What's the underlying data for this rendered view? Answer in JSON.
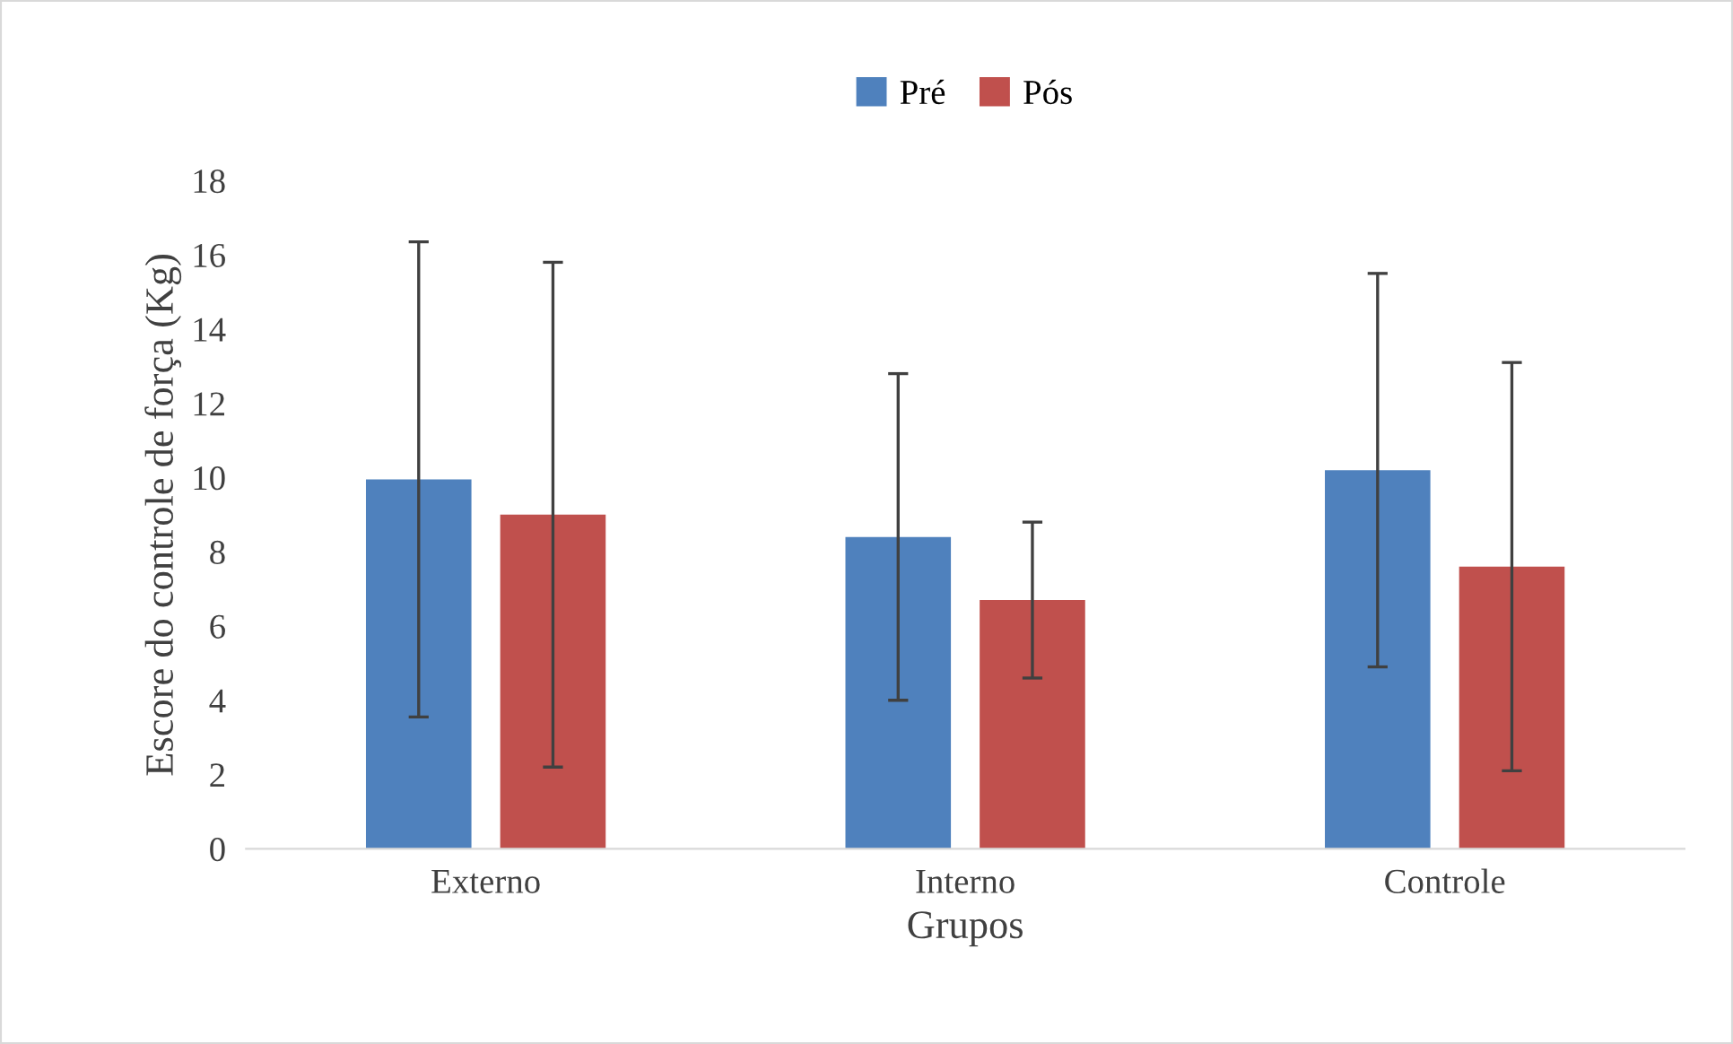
{
  "chart_data": {
    "type": "bar",
    "xlabel": "Grupos",
    "ylabel": "Escore do controle de força (Kg)",
    "categories": [
      "Externo",
      "Interno",
      "Controle"
    ],
    "series": [
      {
        "name": "Pré",
        "color": "#4f81bd",
        "values": [
          9.95,
          8.4,
          10.2
        ],
        "errors": [
          6.4,
          4.4,
          5.3
        ]
      },
      {
        "name": "Pós",
        "color": "#c0504d",
        "values": [
          9.0,
          6.7,
          7.6
        ],
        "errors": [
          6.8,
          2.1,
          5.5
        ]
      }
    ],
    "ylim": [
      0,
      18
    ],
    "yticks": [
      0,
      2,
      4,
      6,
      8,
      10,
      12,
      14,
      16,
      18
    ],
    "grid": false,
    "legend": "top"
  }
}
